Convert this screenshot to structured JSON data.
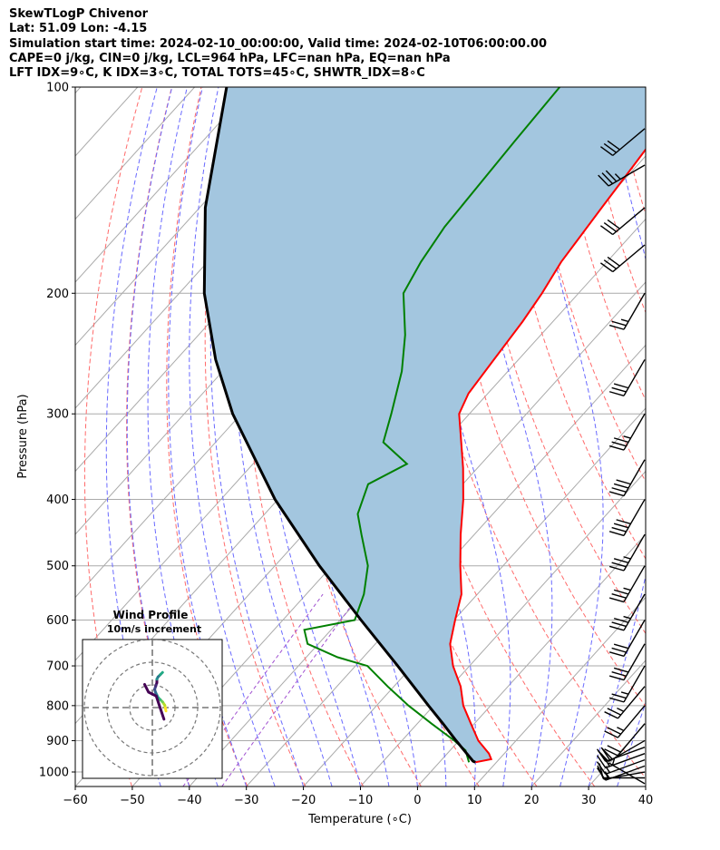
{
  "header": {
    "line1": "SkewTLogP Chivenor",
    "line2": "Lat: 51.09   Lon: -4.15",
    "line3": "Simulation start time: 2024-02-10_00:00:00, Valid time: 2024-02-10T06:00:00.00",
    "line4": "CAPE=0 j/kg, CIN=0 j/kg, LCL=964 hPa, LFC=nan hPa, EQ=nan hPa",
    "line5": "LFT IDX=9∘C, K IDX=3∘C, TOTAL TOTS=45∘C, SHWTR_IDX=8∘C"
  },
  "colors": {
    "temperature": "#ff0000",
    "dewpoint": "#008000",
    "parcel": "#000000",
    "shade": "#a3c6df",
    "dry_adiabat": "#ff6a6a",
    "moist_adiabat": "#6a6aff",
    "mixing_ratio": "#a050d0",
    "isotherm": "#aaaaaa"
  },
  "chart_data": {
    "type": "line",
    "title": "",
    "xlabel": "Temperature (∘C)",
    "ylabel": "Pressure (hPa)",
    "xlim": [
      -60,
      40
    ],
    "ylim": [
      1050,
      100
    ],
    "yscale": "log",
    "grid": true,
    "x_ticks": [
      "−60",
      "−50",
      "−40",
      "−30",
      "−20",
      "−10",
      "0",
      "10",
      "20",
      "30",
      "40"
    ],
    "y_ticks": [
      "100",
      "200",
      "300",
      "400",
      "500",
      "600",
      "700",
      "800",
      "900",
      "1000"
    ],
    "series": [
      {
        "key": "temperature",
        "pressure": [
          968,
          958,
          940,
          900,
          850,
          800,
          750,
          700,
          650,
          600,
          550,
          500,
          450,
          400,
          360,
          320,
          300,
          280,
          250,
          220,
          200,
          180,
          150,
          130,
          115,
          100
        ],
        "temp": [
          6.3,
          8.6,
          7.3,
          3.4,
          -0.6,
          -4.8,
          -8.3,
          -12.9,
          -16.9,
          -19.8,
          -22.8,
          -27.5,
          -32.4,
          -37.5,
          -42.5,
          -48.5,
          -51.8,
          -53.4,
          -54.3,
          -55.3,
          -56.4,
          -58.0,
          -59.5,
          -60.6,
          -61.6,
          -62.6
        ]
      },
      {
        "key": "dewpoint",
        "pressure": [
          968,
          930,
          900,
          850,
          800,
          750,
          700,
          680,
          650,
          620,
          600,
          550,
          500,
          450,
          420,
          380,
          355,
          330,
          300,
          260,
          230,
          200,
          180,
          160,
          140,
          120,
          100
        ],
        "temp": [
          5.2,
          2.7,
          -0.8,
          -7.5,
          -14.4,
          -21.1,
          -27.9,
          -34.5,
          -41.9,
          -44.7,
          -37.4,
          -39.9,
          -43.7,
          -49.8,
          -53.7,
          -56.6,
          -53.0,
          -60.6,
          -63.7,
          -68.6,
          -73.8,
          -80.7,
          -82.6,
          -84.0,
          -84.6,
          -85.3,
          -86.0
        ]
      },
      {
        "key": "parcel",
        "pressure": [
          968,
          964,
          900,
          850,
          800,
          700,
          600,
          500,
          400,
          300,
          250,
          200,
          150,
          100
        ],
        "temp": [
          6.3,
          5.7,
          -0.5,
          -5.5,
          -10.9,
          -22.6,
          -36.3,
          -52.2,
          -70.5,
          -91.5,
          -103.1,
          -115.6,
          -129.0,
          -144.4
        ]
      }
    ],
    "wind_barbs": {
      "pressure": [
        1040,
        1020,
        1000,
        980,
        960,
        940,
        920,
        900,
        850,
        800,
        750,
        700,
        650,
        600,
        550,
        500,
        450,
        400,
        350,
        300,
        250,
        200,
        170,
        150,
        130,
        115
      ],
      "speed_kt": [
        5,
        10,
        15,
        15,
        15,
        20,
        20,
        20,
        20,
        25,
        25,
        25,
        30,
        30,
        35,
        35,
        35,
        40,
        40,
        35,
        30,
        25,
        30,
        30,
        35,
        30
      ],
      "direction_deg": [
        300,
        270,
        260,
        250,
        250,
        250,
        250,
        240,
        220,
        220,
        220,
        210,
        210,
        210,
        210,
        210,
        210,
        210,
        210,
        210,
        210,
        210,
        230,
        230,
        240,
        230
      ]
    },
    "inset": {
      "title_line1": "Wind Profile",
      "title_line2": "10m/s increment",
      "u": [
        6.0,
        5.5,
        4.5,
        3.5,
        2.5,
        2.0,
        1.5,
        1.0,
        1.5,
        2.0,
        2.0,
        2.5,
        3.5,
        4.5
      ],
      "v": [
        -1.5,
        1.0,
        2.5,
        3.5,
        4.5,
        5.5,
        6.5,
        8.0,
        9.5,
        11.0,
        12.5,
        13.5,
        14.5,
        15.5
      ],
      "u_low": [
        -1.5,
        -1.0,
        -0.5,
        0.5,
        1.0
      ],
      "v_low": [
        -1.5,
        0.0,
        1.5,
        2.0,
        3.0
      ]
    }
  }
}
